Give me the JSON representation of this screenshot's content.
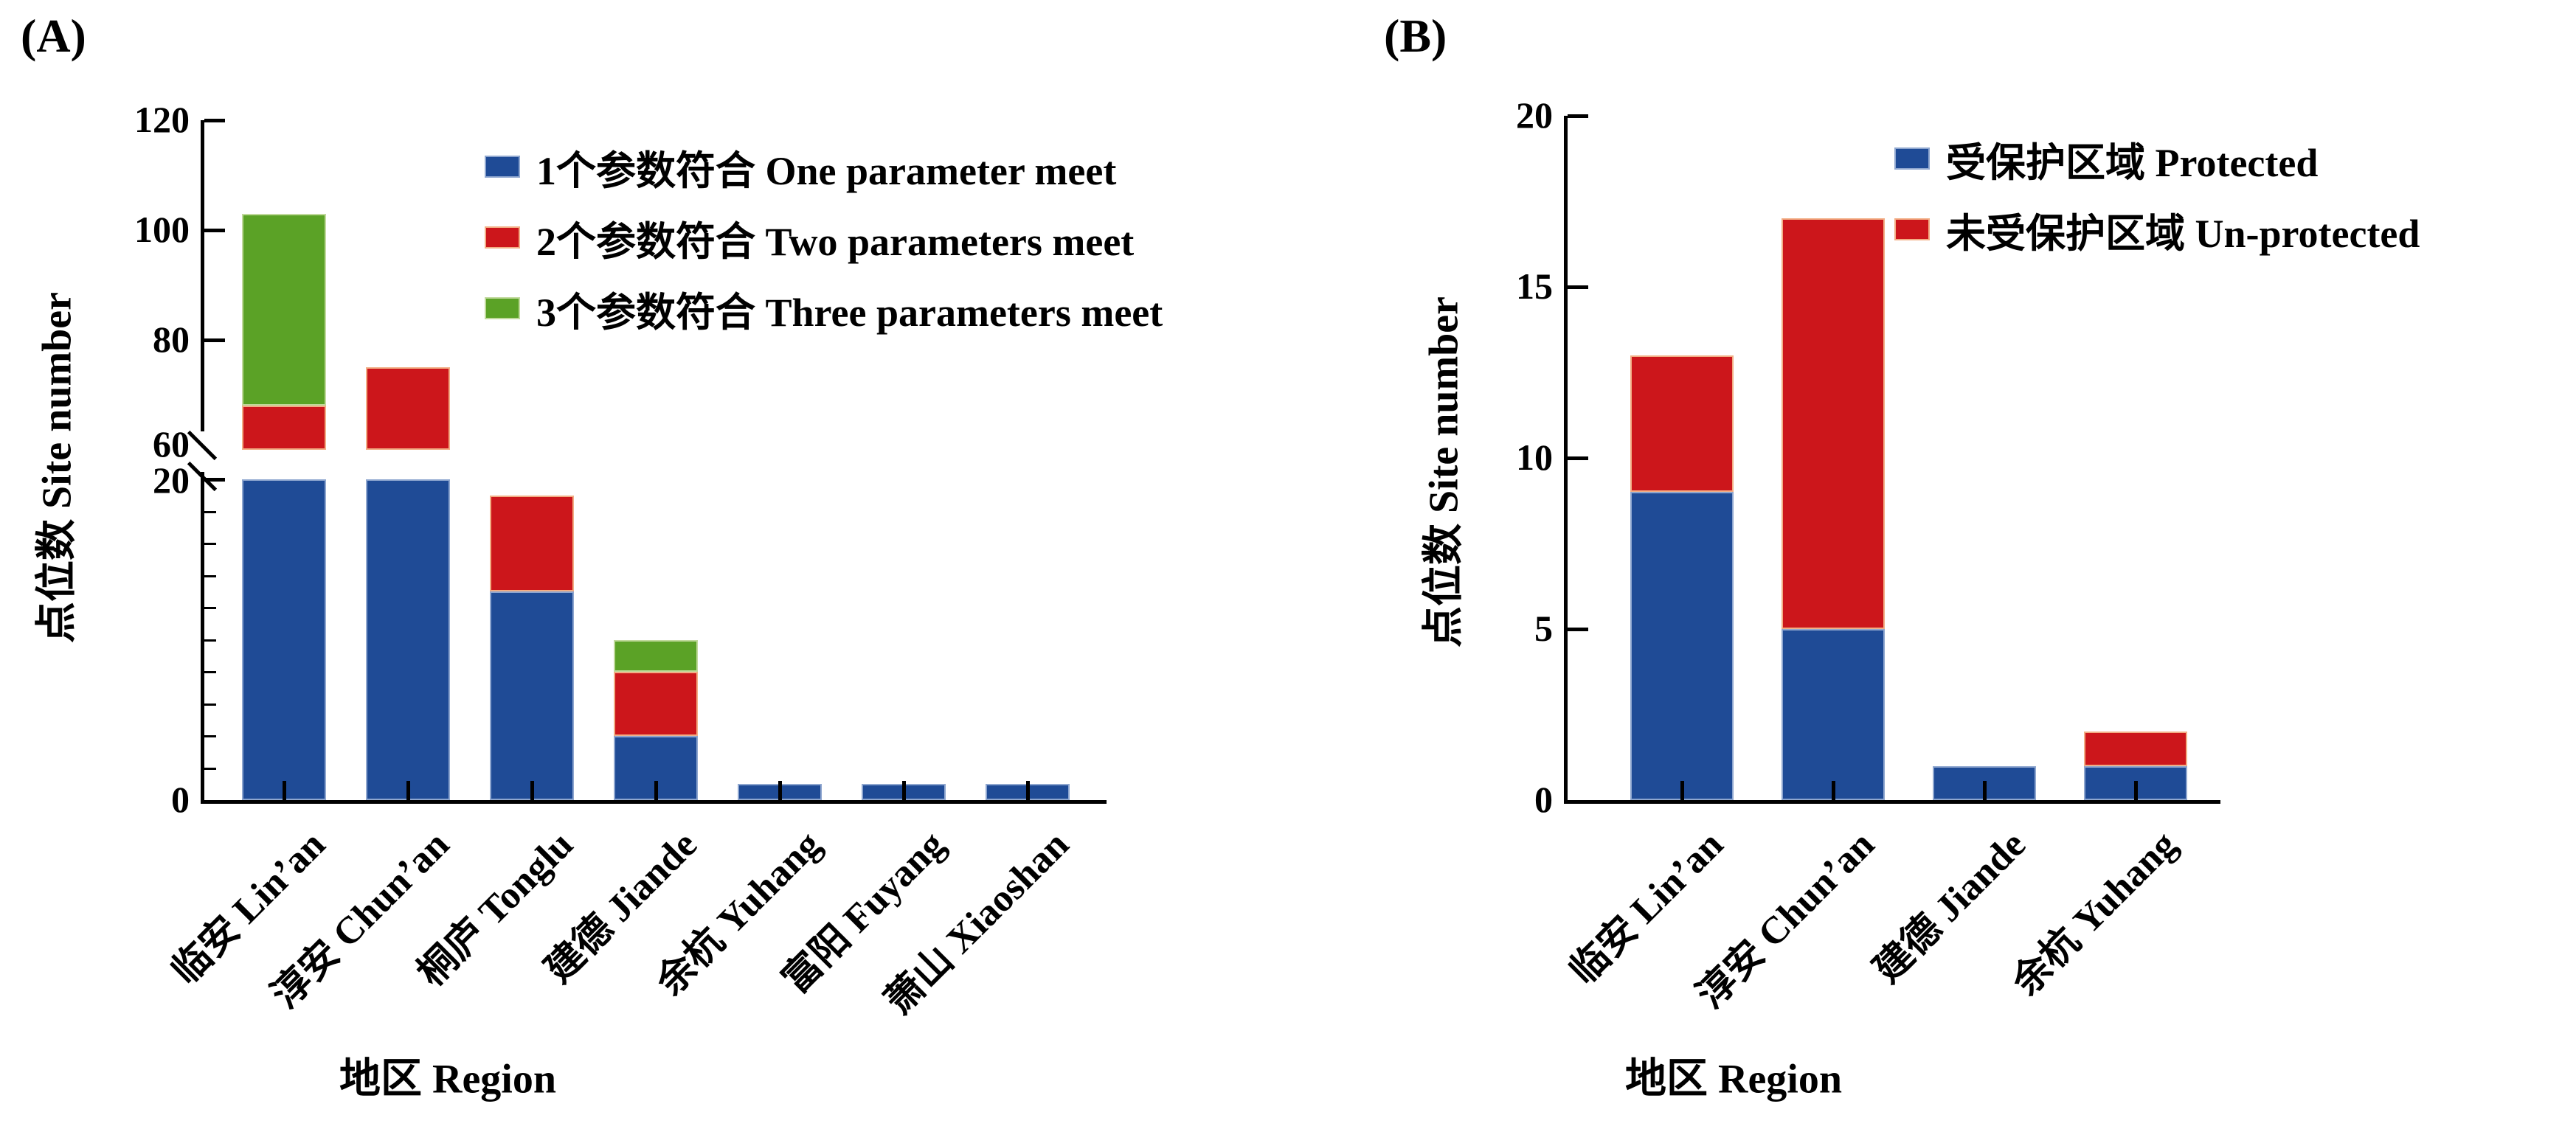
{
  "panel_labels": {
    "a": "(A)",
    "b": "(B)"
  },
  "chart_data": [
    {
      "type": "bar",
      "stacked": true,
      "panel": "A",
      "xlabel": "地区 Region",
      "ylabel": "点位数 Site number",
      "axis_color": "#000000",
      "background": "#ffffff",
      "axis_break": {
        "visible_windows": [
          [
            0,
            20
          ],
          [
            60,
            120
          ]
        ],
        "note": "y-axis broken between 20 and 60; Lin'an and Chun'an blue bars pass through the break"
      },
      "ytick_labels": [
        120,
        100,
        80,
        60,
        20,
        0
      ],
      "yticks_upper": [
        80,
        100,
        120
      ],
      "yticks_lower_major": [
        20
      ],
      "yticks_lower_minor": [
        2,
        4,
        6,
        8,
        10,
        12,
        14,
        16,
        18
      ],
      "categories": [
        "临安 Lin’an",
        "淳安 Chun’an",
        "桐庐 Tonglu",
        "建德 Jiande",
        "余杭 Yuhang",
        "富阳 Fuyang",
        "萧山 Xiaoshan"
      ],
      "series": [
        {
          "name": "1个参数符合 One parameter meet",
          "color": "#1f4b96",
          "edge": "#8ea6cf"
        },
        {
          "name": "2个参数符合 Two parameters meet",
          "color": "#cc161b",
          "edge": "#f2ae85"
        },
        {
          "name": "3个参数符合 Three parameters meet",
          "color": "#5ba226",
          "edge": "#c0d99b"
        }
      ],
      "bars": [
        {
          "category": "临安 Lin’an",
          "segments": [
            {
              "series": 0,
              "from": 0,
              "to": 60,
              "display": "clipped by axis break"
            },
            {
              "series": 1,
              "from": 60,
              "to": 68
            },
            {
              "series": 2,
              "from": 68,
              "to": 103
            }
          ],
          "total": 103
        },
        {
          "category": "淳安 Chun’an",
          "segments": [
            {
              "series": 0,
              "from": 0,
              "to": 60,
              "display": "clipped by axis break"
            },
            {
              "series": 1,
              "from": 60,
              "to": 75
            }
          ],
          "total": 75
        },
        {
          "category": "桐庐 Tonglu",
          "segments": [
            {
              "series": 0,
              "from": 0,
              "to": 13
            },
            {
              "series": 1,
              "from": 13,
              "to": 19
            }
          ],
          "total": 19
        },
        {
          "category": "建德 Jiande",
          "segments": [
            {
              "series": 0,
              "from": 0,
              "to": 4
            },
            {
              "series": 1,
              "from": 4,
              "to": 8
            },
            {
              "series": 2,
              "from": 8,
              "to": 10
            }
          ],
          "total": 10
        },
        {
          "category": "余杭 Yuhang",
          "segments": [
            {
              "series": 0,
              "from": 0,
              "to": 1
            }
          ],
          "total": 1
        },
        {
          "category": "富阳 Fuyang",
          "segments": [
            {
              "series": 0,
              "from": 0,
              "to": 1
            }
          ],
          "total": 1
        },
        {
          "category": "萧山 Xiaoshan",
          "segments": [
            {
              "series": 0,
              "from": 0,
              "to": 1
            }
          ],
          "total": 1
        }
      ]
    },
    {
      "type": "bar",
      "stacked": true,
      "panel": "B",
      "xlabel": "地区 Region",
      "ylabel": "点位数 Site number",
      "axis_color": "#000000",
      "background": "#ffffff",
      "ylim": [
        0,
        20
      ],
      "yticks": [
        0,
        5,
        10,
        15,
        20
      ],
      "categories": [
        "临安 Lin’an",
        "淳安 Chun’an",
        "建德 Jiande",
        "余杭 Yuhang"
      ],
      "series": [
        {
          "name": "受保护区域 Protected",
          "color": "#1f4b96",
          "edge": "#8ea6cf",
          "values": [
            9,
            5,
            1,
            1
          ]
        },
        {
          "name": "未受保护区域 Un-protected",
          "color": "#cc161b",
          "edge": "#f2ae85",
          "values": [
            4,
            12,
            0,
            1
          ]
        }
      ],
      "totals": [
        13,
        17,
        1,
        2
      ]
    }
  ]
}
